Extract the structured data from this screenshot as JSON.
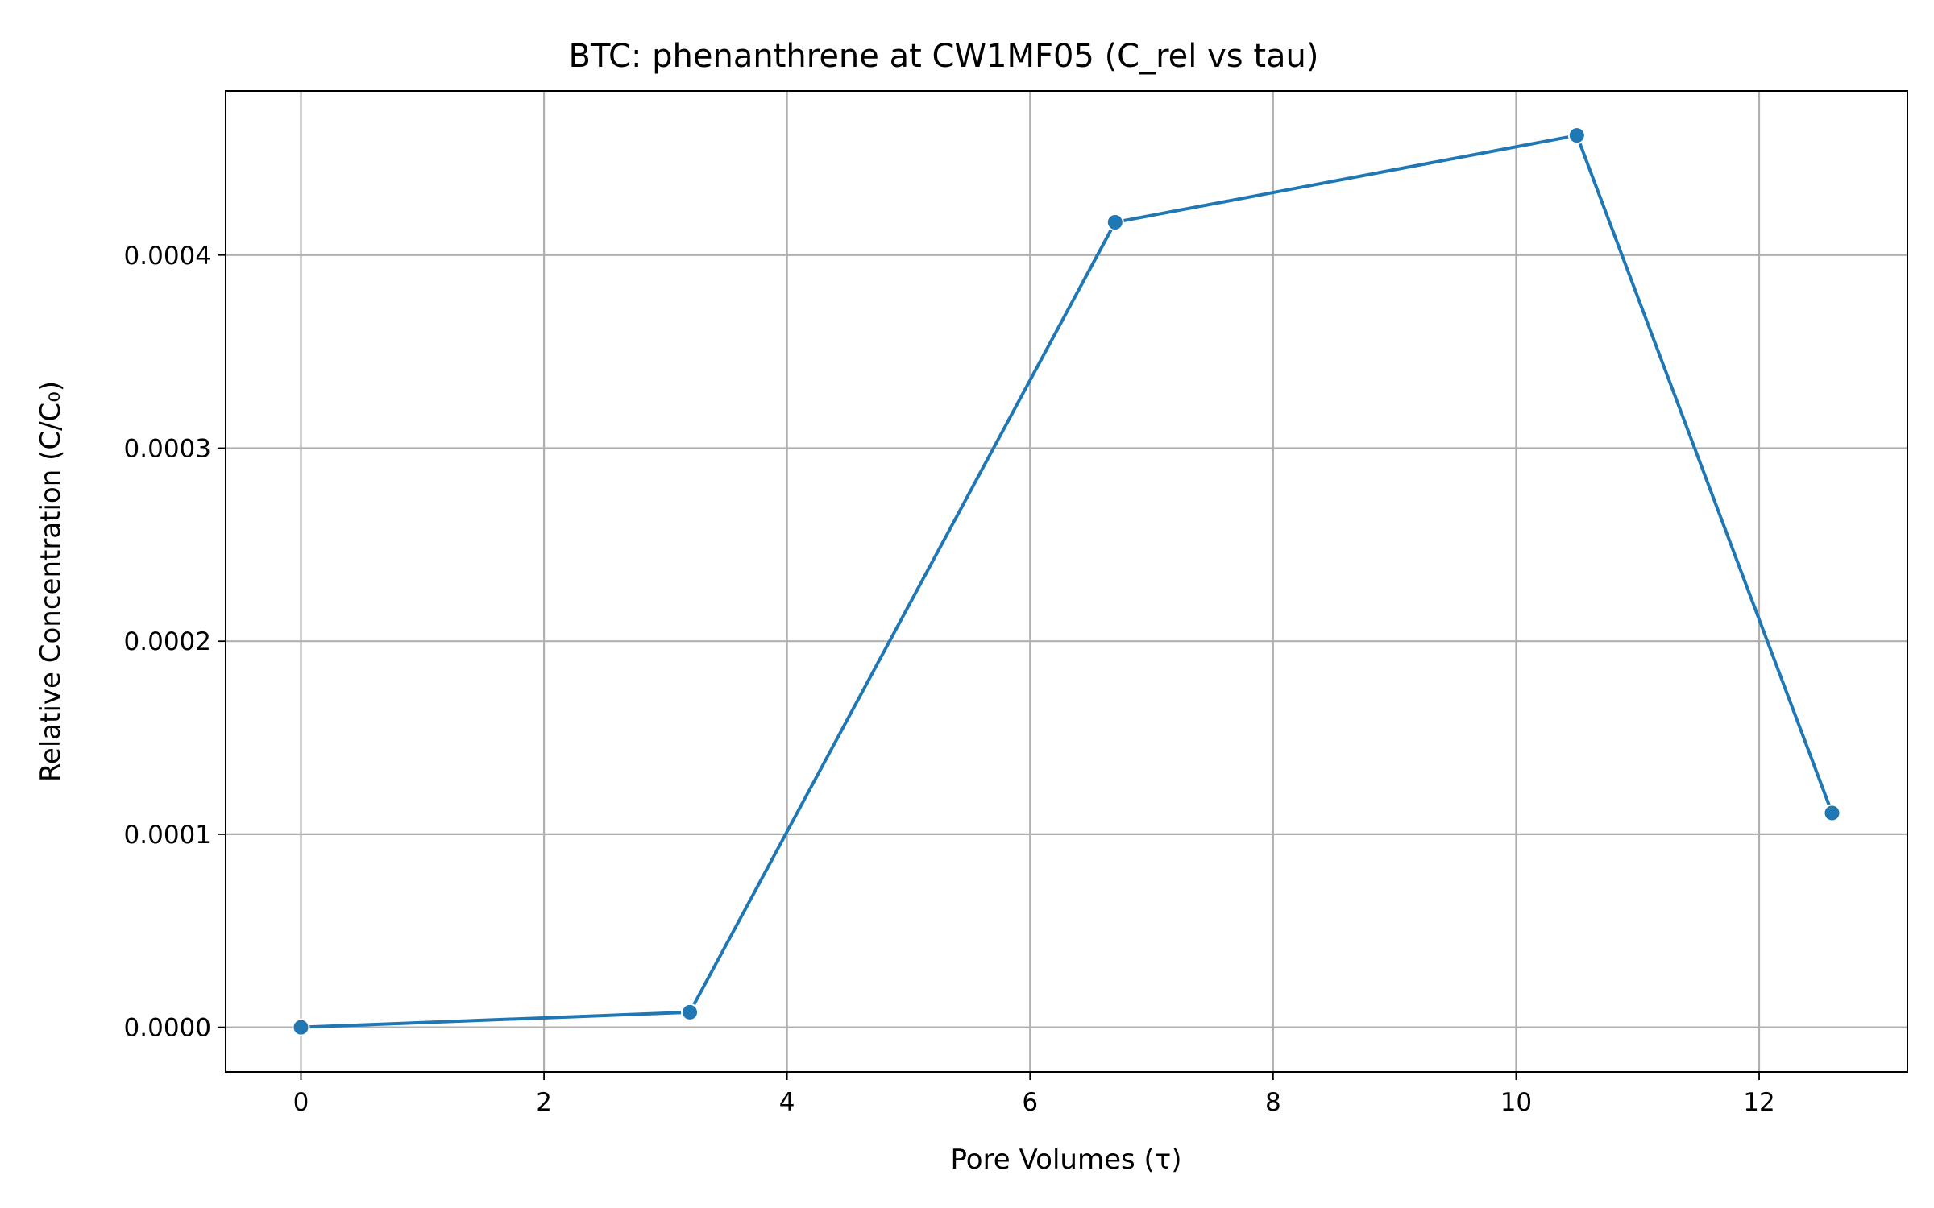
{
  "chart_data": {
    "type": "line",
    "title": "BTC: phenanthrene at CW1MF05 (C_rel vs tau)",
    "xlabel": "Pore Volumes (τ)",
    "ylabel": "Relative Concentration (C/C₀)",
    "xlim": [
      -0.62,
      13.22
    ],
    "ylim": [
      -2.31e-05,
      0.000485
    ],
    "xticks": [
      0,
      2,
      4,
      6,
      8,
      10,
      12
    ],
    "xtick_labels": [
      "0",
      "2",
      "4",
      "6",
      "8",
      "10",
      "12"
    ],
    "yticks": [
      0.0,
      0.0001,
      0.0002,
      0.0003,
      0.0004
    ],
    "ytick_labels": [
      "0.0000",
      "0.0001",
      "0.0002",
      "0.0003",
      "0.0004"
    ],
    "grid": true,
    "series": [
      {
        "color": "#1f77b4",
        "x": [
          0,
          3.2,
          6.7,
          10.5,
          12.6
        ],
        "y": [
          0.0,
          7.8e-06,
          0.000417,
          0.000462,
          0.000111
        ]
      }
    ]
  }
}
